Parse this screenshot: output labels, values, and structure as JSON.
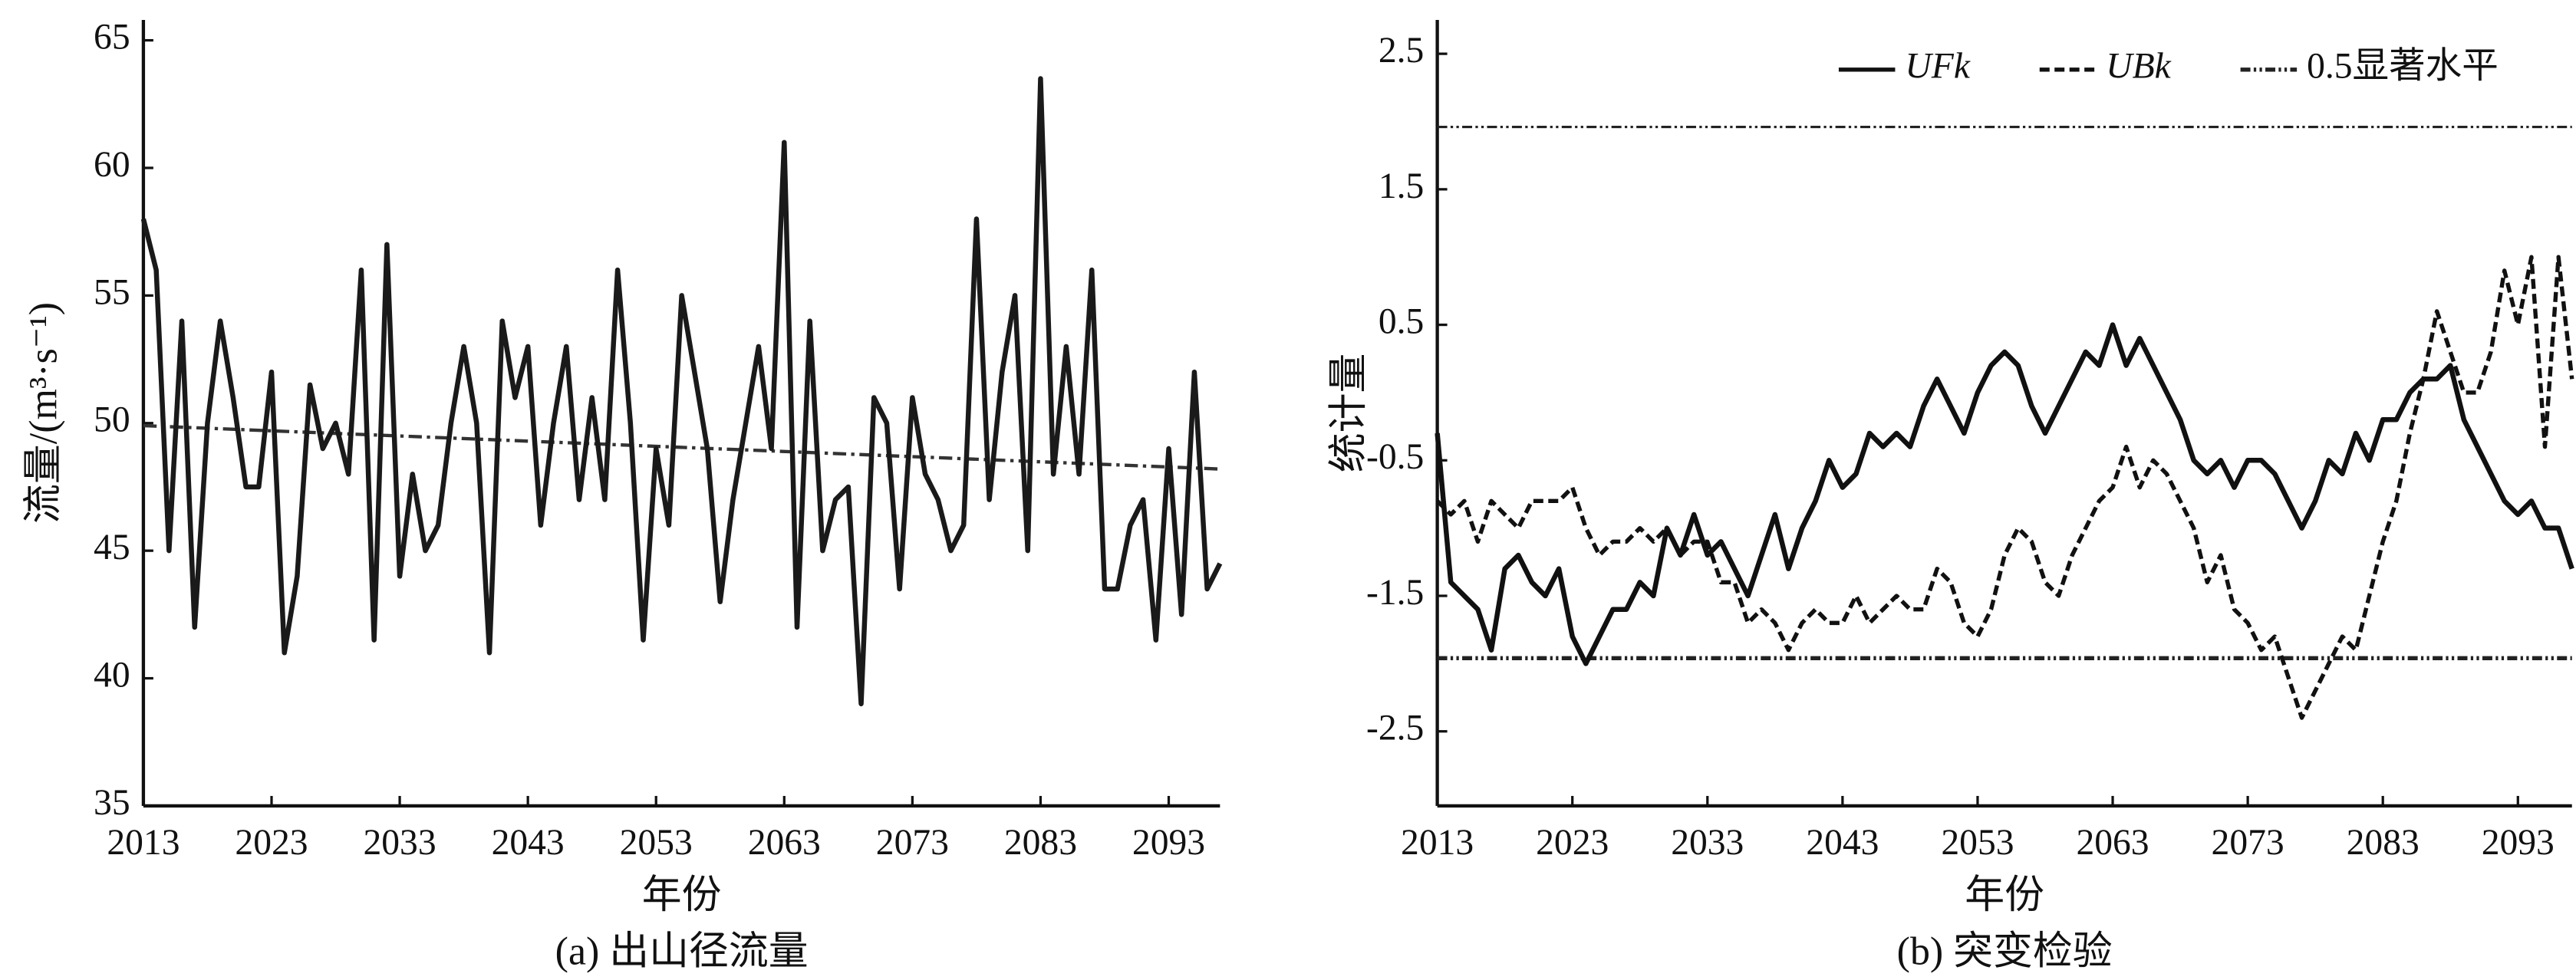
{
  "chart_data": [
    {
      "type": "line",
      "caption": "(a) 出山径流量",
      "xlabel": "年份",
      "ylabel": "流量/(m³·s⁻¹)",
      "x": [
        2013,
        2014,
        2015,
        2016,
        2017,
        2018,
        2019,
        2020,
        2021,
        2022,
        2023,
        2024,
        2025,
        2026,
        2027,
        2028,
        2029,
        2030,
        2031,
        2032,
        2033,
        2034,
        2035,
        2036,
        2037,
        2038,
        2039,
        2040,
        2041,
        2042,
        2043,
        2044,
        2045,
        2046,
        2047,
        2048,
        2049,
        2050,
        2051,
        2052,
        2053,
        2054,
        2055,
        2056,
        2057,
        2058,
        2059,
        2060,
        2061,
        2062,
        2063,
        2064,
        2065,
        2066,
        2067,
        2068,
        2069,
        2070,
        2071,
        2072,
        2073,
        2074,
        2075,
        2076,
        2077,
        2078,
        2079,
        2080,
        2081,
        2082,
        2083,
        2084,
        2085,
        2086,
        2087,
        2088,
        2089,
        2090,
        2091,
        2092,
        2093,
        2094,
        2095,
        2096,
        2097
      ],
      "series": [
        {
          "color": "#1a1a1a",
          "style": "solid",
          "values": [
            58,
            56,
            45,
            54,
            42,
            50,
            54,
            51,
            47.5,
            47.5,
            52,
            41,
            44,
            51.5,
            49,
            50,
            48,
            56,
            41.5,
            57,
            44,
            48,
            45,
            46,
            50,
            53,
            50,
            41,
            54,
            51,
            53,
            46,
            50,
            53,
            47,
            51,
            47,
            56,
            50,
            41.5,
            49,
            46,
            55,
            52,
            49,
            43,
            47,
            50,
            53,
            49,
            61,
            42,
            54,
            45,
            47,
            47.5,
            39,
            51,
            50,
            43.5,
            51,
            48,
            47,
            45,
            46,
            58,
            47,
            52,
            55,
            45,
            63.5,
            48,
            53,
            48,
            56,
            43.5,
            43.5,
            46,
            47,
            41.5,
            49,
            42.5,
            52,
            43.5,
            44.5
          ]
        }
      ],
      "trend": {
        "color": "#333333",
        "style": "dash-dot",
        "x": [
          2013,
          2097
        ],
        "values": [
          49.9,
          48.2
        ]
      },
      "xlim": [
        2013,
        2097
      ],
      "xticks": [
        2013,
        2023,
        2033,
        2043,
        2053,
        2063,
        2073,
        2083,
        2093
      ],
      "ylim": [
        35,
        65.8
      ],
      "yticks": [
        35,
        40,
        45,
        50,
        55,
        60,
        65
      ]
    },
    {
      "type": "line",
      "caption": "(b) 突变检验",
      "xlabel": "年份",
      "ylabel": "统计量",
      "x": [
        2013,
        2014,
        2015,
        2016,
        2017,
        2018,
        2019,
        2020,
        2021,
        2022,
        2023,
        2024,
        2025,
        2026,
        2027,
        2028,
        2029,
        2030,
        2031,
        2032,
        2033,
        2034,
        2035,
        2036,
        2037,
        2038,
        2039,
        2040,
        2041,
        2042,
        2043,
        2044,
        2045,
        2046,
        2047,
        2048,
        2049,
        2050,
        2051,
        2052,
        2053,
        2054,
        2055,
        2056,
        2057,
        2058,
        2059,
        2060,
        2061,
        2062,
        2063,
        2064,
        2065,
        2066,
        2067,
        2068,
        2069,
        2070,
        2071,
        2072,
        2073,
        2074,
        2075,
        2076,
        2077,
        2078,
        2079,
        2080,
        2081,
        2082,
        2083,
        2084,
        2085,
        2086,
        2087,
        2088,
        2089,
        2090,
        2091,
        2092,
        2093,
        2094,
        2095,
        2096,
        2097
      ],
      "series": [
        {
          "name": "UFk",
          "color": "#111111",
          "style": "solid",
          "values": [
            -0.3,
            -1.4,
            -1.5,
            -1.6,
            -1.9,
            -1.3,
            -1.2,
            -1.4,
            -1.5,
            -1.3,
            -1.8,
            -2.0,
            -1.8,
            -1.6,
            -1.6,
            -1.4,
            -1.5,
            -1.0,
            -1.2,
            -0.9,
            -1.2,
            -1.1,
            -1.3,
            -1.5,
            -1.2,
            -0.9,
            -1.3,
            -1.0,
            -0.8,
            -0.5,
            -0.7,
            -0.6,
            -0.3,
            -0.4,
            -0.3,
            -0.4,
            -0.1,
            0.1,
            -0.1,
            -0.3,
            0.0,
            0.2,
            0.3,
            0.2,
            -0.1,
            -0.3,
            -0.1,
            0.1,
            0.3,
            0.2,
            0.5,
            0.2,
            0.4,
            0.2,
            0.0,
            -0.2,
            -0.5,
            -0.6,
            -0.5,
            -0.7,
            -0.5,
            -0.5,
            -0.6,
            -0.8,
            -1.0,
            -0.8,
            -0.5,
            -0.6,
            -0.3,
            -0.5,
            -0.2,
            -0.2,
            0.0,
            0.1,
            0.1,
            0.2,
            -0.2,
            -0.4,
            -0.6,
            -0.8,
            -0.9,
            -0.8,
            -1.0,
            -1.0,
            -1.3
          ]
        },
        {
          "name": "UBk",
          "color": "#111111",
          "style": "dashed",
          "values": [
            -0.8,
            -0.9,
            -0.8,
            -1.1,
            -0.8,
            -0.9,
            -1.0,
            -0.8,
            -0.8,
            -0.8,
            -0.7,
            -1.0,
            -1.2,
            -1.1,
            -1.1,
            -1.0,
            -1.1,
            -1.0,
            -1.2,
            -1.1,
            -1.1,
            -1.4,
            -1.4,
            -1.7,
            -1.6,
            -1.7,
            -1.9,
            -1.7,
            -1.6,
            -1.7,
            -1.7,
            -1.5,
            -1.7,
            -1.6,
            -1.5,
            -1.6,
            -1.6,
            -1.3,
            -1.4,
            -1.7,
            -1.8,
            -1.6,
            -1.2,
            -1.0,
            -1.1,
            -1.4,
            -1.5,
            -1.2,
            -1.0,
            -0.8,
            -0.7,
            -0.4,
            -0.7,
            -0.5,
            -0.6,
            -0.8,
            -1.0,
            -1.4,
            -1.2,
            -1.6,
            -1.7,
            -1.9,
            -1.8,
            -2.1,
            -2.4,
            -2.2,
            -2.0,
            -1.8,
            -1.9,
            -1.5,
            -1.1,
            -0.8,
            -0.3,
            0.1,
            0.6,
            0.3,
            0.0,
            0.0,
            0.3,
            0.9,
            0.5,
            1.0,
            -0.4,
            1.0,
            0.1
          ]
        }
      ],
      "significance": {
        "name": "0.5显著水平",
        "color": "#222222",
        "style": "dash-dot-dot",
        "values": [
          1.96,
          -1.96
        ]
      },
      "xlim": [
        2013,
        2097
      ],
      "xticks": [
        2013,
        2023,
        2033,
        2043,
        2053,
        2063,
        2073,
        2083,
        2093
      ],
      "ylim": [
        -3.05,
        2.75
      ],
      "yticks": [
        -2.5,
        -1.5,
        -0.5,
        0.5,
        1.5,
        2.5
      ]
    }
  ]
}
